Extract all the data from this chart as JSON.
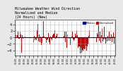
{
  "title": "Milwaukee Weather Wind Direction\nNormalized and Median\n(24 Hours) (New)",
  "title_fontsize": 3.5,
  "bg_color": "#e8e8e8",
  "plot_bg_color": "#ffffff",
  "bar_color": "#cc0000",
  "median_color": "#0000cc",
  "median_value": 0.0,
  "ylim": [
    -5.5,
    5.5
  ],
  "yticks": [
    -4,
    -2,
    0,
    2,
    4
  ],
  "ytick_fontsize": 3.5,
  "xtick_fontsize": 2.2,
  "legend_labels": [
    "Median",
    "Normalized"
  ],
  "legend_colors": [
    "#0000cc",
    "#cc0000"
  ],
  "n_bars": 144,
  "seed": 42,
  "grid_color": "#aaaaaa",
  "grid_style": "--",
  "n_xgrid": 8
}
